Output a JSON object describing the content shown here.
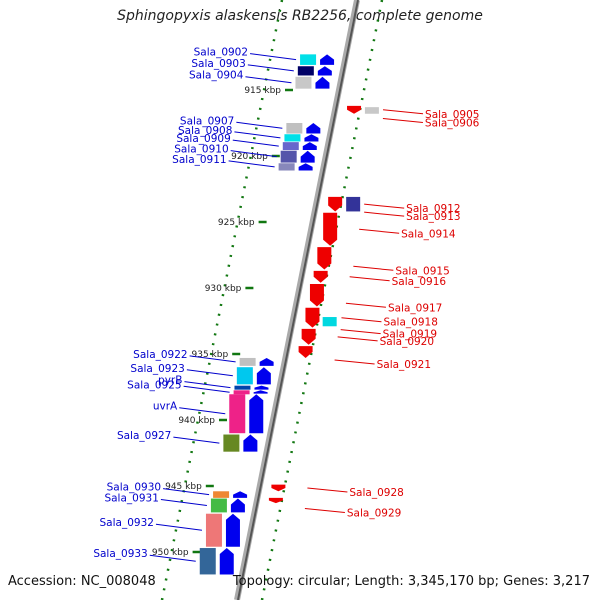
{
  "title": "Sphingopyxis alaskensis RB2256, complete genome",
  "accession": "Accession: NC_008048",
  "topology": "Topology: circular; Length: 3,345,170 bp; Genes: 3,217",
  "colors": {
    "plus_label": "#0000cc",
    "minus_label": "#dd0000",
    "backbone": "#888888",
    "tick": "#117711",
    "plus_gene": "#0000ee",
    "minus_gene": "#ee0000"
  },
  "ticks": [
    {
      "label": "915 kbp",
      "pos": 915
    },
    {
      "label": "920 kbp",
      "pos": 920
    },
    {
      "label": "925 kbp",
      "pos": 925
    },
    {
      "label": "930 kbp",
      "pos": 930
    },
    {
      "label": "935 kbp",
      "pos": 935
    },
    {
      "label": "940 kbp",
      "pos": 940
    },
    {
      "label": "945 kbp",
      "pos": 945
    },
    {
      "label": "950 kbp",
      "pos": 950
    }
  ],
  "plus_genes": [
    {
      "label": "Sala_0902",
      "start": 912.3,
      "end": 913.1,
      "color": "#00e0e8"
    },
    {
      "label": "Sala_0903",
      "start": 913.2,
      "end": 913.9,
      "color": "#000066"
    },
    {
      "label": "Sala_0904",
      "start": 914.0,
      "end": 914.9,
      "color": "#c8c8c8"
    },
    {
      "label": "Sala_0907",
      "start": 917.5,
      "end": 918.3,
      "color": "#c0c0c0"
    },
    {
      "label": "Sala_0908",
      "start": 918.35,
      "end": 918.9,
      "color": "#00e0e8"
    },
    {
      "label": "Sala_0909",
      "start": 918.95,
      "end": 919.55,
      "color": "#6666cc"
    },
    {
      "label": "Sala_0910",
      "start": 919.6,
      "end": 920.5,
      "color": "#5555aa"
    },
    {
      "label": "Sala_0911",
      "start": 920.55,
      "end": 921.1,
      "color": "#8888bb"
    },
    {
      "label": "Sala_0922",
      "start": 935.3,
      "end": 935.9,
      "color": "#c0c0c0"
    },
    {
      "label": "Sala_0923",
      "start": 936.0,
      "end": 937.3,
      "color": "#00c8ee"
    },
    {
      "label": "pyrB",
      "start": 937.4,
      "end": 937.7,
      "color": "#0044aa"
    },
    {
      "label": "Sala_0925",
      "start": 937.75,
      "end": 938.0,
      "color": "#ee2288"
    },
    {
      "label": "uvrA",
      "start": 938.05,
      "end": 941.0,
      "color": "#ee2288"
    },
    {
      "label": "Sala_0927",
      "start": 941.1,
      "end": 942.4,
      "color": "#668822"
    },
    {
      "label": "Sala_0930",
      "start": 945.4,
      "end": 945.9,
      "color": "#ee8833"
    },
    {
      "label": "Sala_0931",
      "start": 945.95,
      "end": 947.0,
      "color": "#44bb44"
    },
    {
      "label": "Sala_0932",
      "start": 947.1,
      "end": 949.6,
      "color": "#ee7777"
    },
    {
      "label": "Sala_0933",
      "start": 949.7,
      "end": 951.7,
      "color": "#336699"
    }
  ],
  "minus_genes": [
    {
      "label": "Sala_0905",
      "start": 916.2,
      "end": 916.8,
      "color": "#ee0000"
    },
    {
      "label": "Sala_0906",
      "start": 916.3,
      "end": 916.8,
      "color": "#c8c8c8"
    },
    {
      "label": "Sala_0912",
      "start": 923.1,
      "end": 924.2,
      "color": "#ee0000"
    },
    {
      "label": "Sala_0913",
      "start": 923.1,
      "end": 924.2,
      "color": "#333399"
    },
    {
      "label": "Sala_0914",
      "start": 924.3,
      "end": 926.8,
      "color": "#ee0000"
    },
    {
      "label": "Sala_0915",
      "start": 926.9,
      "end": 928.6,
      "color": "#ee0000"
    },
    {
      "label": "Sala_0916",
      "start": 928.7,
      "end": 929.6,
      "color": "#ee0000"
    },
    {
      "label": "Sala_0917",
      "start": 929.7,
      "end": 931.4,
      "color": "#ee0000"
    },
    {
      "label": "Sala_0918",
      "start": 931.5,
      "end": 933.0,
      "color": "#ee0000"
    },
    {
      "label": "Sala_0919",
      "start": 932.2,
      "end": 932.9,
      "color": "#00d8e0"
    },
    {
      "label": "Sala_0920",
      "start": 933.1,
      "end": 934.3,
      "color": "#ee0000"
    },
    {
      "label": "Sala_0921",
      "start": 934.4,
      "end": 935.3,
      "color": "#ee0000"
    },
    {
      "label": "Sala_0928",
      "start": 944.9,
      "end": 945.4,
      "color": "#ee0000"
    },
    {
      "label": "Sala_0929",
      "start": 945.9,
      "end": 946.3,
      "color": "#ee0000"
    }
  ]
}
